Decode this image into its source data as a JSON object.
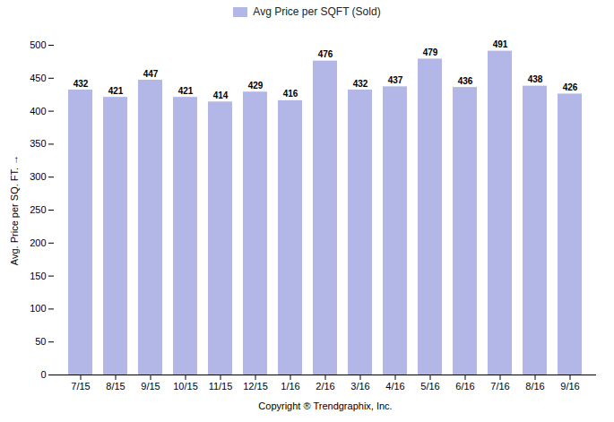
{
  "chart_data": {
    "type": "bar",
    "categories": [
      "7/15",
      "8/15",
      "9/15",
      "10/15",
      "11/15",
      "12/15",
      "1/16",
      "2/16",
      "3/16",
      "4/16",
      "5/16",
      "6/16",
      "7/16",
      "8/16",
      "9/16"
    ],
    "series": [
      {
        "name": "Avg Price per SQFT (Sold)",
        "color": "#b3b7e8",
        "values": [
          432,
          421,
          447,
          421,
          414,
          429,
          416,
          476,
          432,
          437,
          479,
          436,
          491,
          438,
          426
        ]
      }
    ],
    "xlabel": "Copyright ® Trendgraphix, Inc.",
    "ylabel": "Avg. Price per SQ. FT.",
    "ylim": [
      0,
      500
    ],
    "yticks": [
      0,
      50,
      100,
      150,
      200,
      250,
      300,
      350,
      400,
      450,
      500
    ],
    "grid": false,
    "legend": "top",
    "data_labels": true
  }
}
